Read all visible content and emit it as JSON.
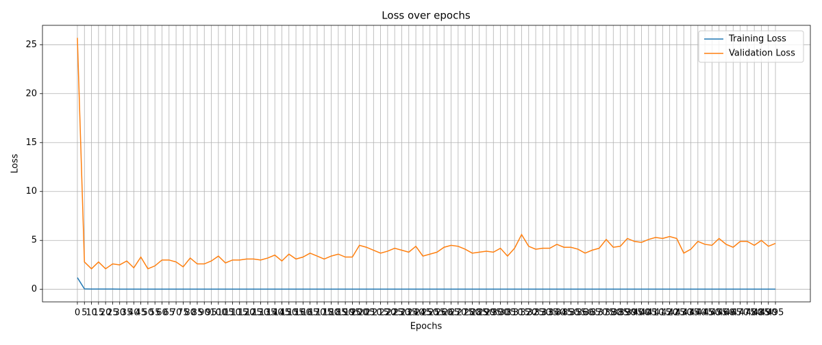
{
  "chart_data": {
    "type": "line",
    "title": "Loss over epochs",
    "xlabel": "Epochs",
    "ylabel": "Loss",
    "x": [
      0,
      5,
      10,
      15,
      20,
      25,
      30,
      35,
      40,
      45,
      50,
      55,
      60,
      65,
      70,
      75,
      80,
      85,
      90,
      95,
      100,
      105,
      110,
      115,
      120,
      125,
      130,
      135,
      140,
      145,
      150,
      155,
      160,
      165,
      170,
      175,
      180,
      185,
      190,
      195,
      200,
      205,
      210,
      215,
      220,
      225,
      230,
      235,
      240,
      245,
      250,
      255,
      260,
      265,
      270,
      275,
      280,
      285,
      290,
      295,
      300,
      305,
      310,
      315,
      320,
      325,
      330,
      335,
      340,
      345,
      350,
      355,
      360,
      365,
      370,
      375,
      380,
      385,
      390,
      395,
      400,
      405,
      410,
      415,
      420,
      425,
      430,
      435,
      440,
      445,
      450,
      455,
      460,
      465,
      470,
      475,
      480,
      485,
      490,
      495
    ],
    "series": [
      {
        "name": "Training Loss",
        "color": "#1f77b4",
        "values": [
          1.2,
          0.05,
          0.03,
          0.03,
          0.03,
          0.03,
          0.02,
          0.02,
          0.02,
          0.02,
          0.02,
          0.02,
          0.02,
          0.02,
          0.02,
          0.02,
          0.02,
          0.02,
          0.02,
          0.02,
          0.02,
          0.02,
          0.02,
          0.02,
          0.02,
          0.02,
          0.02,
          0.02,
          0.02,
          0.02,
          0.02,
          0.02,
          0.02,
          0.02,
          0.02,
          0.02,
          0.02,
          0.02,
          0.02,
          0.02,
          0.02,
          0.02,
          0.02,
          0.02,
          0.02,
          0.02,
          0.02,
          0.02,
          0.02,
          0.02,
          0.02,
          0.02,
          0.02,
          0.02,
          0.02,
          0.02,
          0.02,
          0.02,
          0.02,
          0.02,
          0.02,
          0.02,
          0.02,
          0.02,
          0.02,
          0.02,
          0.02,
          0.02,
          0.02,
          0.02,
          0.02,
          0.02,
          0.02,
          0.02,
          0.02,
          0.02,
          0.02,
          0.02,
          0.02,
          0.02,
          0.02,
          0.02,
          0.02,
          0.02,
          0.02,
          0.02,
          0.02,
          0.02,
          0.02,
          0.02,
          0.02,
          0.02,
          0.02,
          0.02,
          0.02,
          0.02,
          0.02,
          0.02,
          0.02,
          0.02
        ]
      },
      {
        "name": "Validation Loss",
        "color": "#ff7f0e",
        "values": [
          25.7,
          2.8,
          2.1,
          2.8,
          2.1,
          2.6,
          2.5,
          2.9,
          2.2,
          3.3,
          2.1,
          2.4,
          3.0,
          3.0,
          2.8,
          2.3,
          3.2,
          2.6,
          2.6,
          2.9,
          3.4,
          2.7,
          3.0,
          3.0,
          3.1,
          3.1,
          3.0,
          3.2,
          3.5,
          2.9,
          3.6,
          3.1,
          3.3,
          3.7,
          3.4,
          3.1,
          3.4,
          3.6,
          3.3,
          3.3,
          4.5,
          4.3,
          4.0,
          3.7,
          3.9,
          4.2,
          4.0,
          3.8,
          4.4,
          3.4,
          3.6,
          3.8,
          4.3,
          4.5,
          4.4,
          4.1,
          3.7,
          3.8,
          3.9,
          3.8,
          4.2,
          3.4,
          4.2,
          5.6,
          4.4,
          4.1,
          4.2,
          4.2,
          4.6,
          4.3,
          4.3,
          4.1,
          3.7,
          4.0,
          4.2,
          5.1,
          4.3,
          4.4,
          5.2,
          4.9,
          4.8,
          5.1,
          5.3,
          5.2,
          5.4,
          5.2,
          3.7,
          4.1,
          4.9,
          4.6,
          4.5,
          5.2,
          4.6,
          4.3,
          4.9,
          4.9,
          4.5,
          5.0,
          4.4,
          4.7
        ]
      }
    ],
    "xlim": [
      -24.75,
      519.75
    ],
    "xticks": [
      0,
      5,
      10,
      15,
      20,
      25,
      30,
      35,
      40,
      45,
      50,
      55,
      60,
      65,
      70,
      75,
      80,
      85,
      90,
      95,
      100,
      105,
      110,
      115,
      120,
      125,
      130,
      135,
      140,
      145,
      150,
      155,
      160,
      165,
      170,
      175,
      180,
      185,
      190,
      195,
      200,
      205,
      210,
      215,
      220,
      225,
      230,
      235,
      240,
      245,
      250,
      255,
      260,
      265,
      270,
      275,
      280,
      285,
      290,
      295,
      300,
      305,
      310,
      315,
      320,
      325,
      330,
      335,
      340,
      345,
      350,
      355,
      360,
      365,
      370,
      375,
      380,
      385,
      390,
      395,
      400,
      405,
      410,
      415,
      420,
      425,
      430,
      435,
      440,
      445,
      450,
      455,
      460,
      465,
      470,
      475,
      480,
      485,
      490,
      495
    ],
    "ylim": [
      -1.28,
      26.98
    ],
    "yticks": [
      0,
      5,
      10,
      15,
      20,
      25
    ],
    "grid": true,
    "legend": "upper right"
  }
}
